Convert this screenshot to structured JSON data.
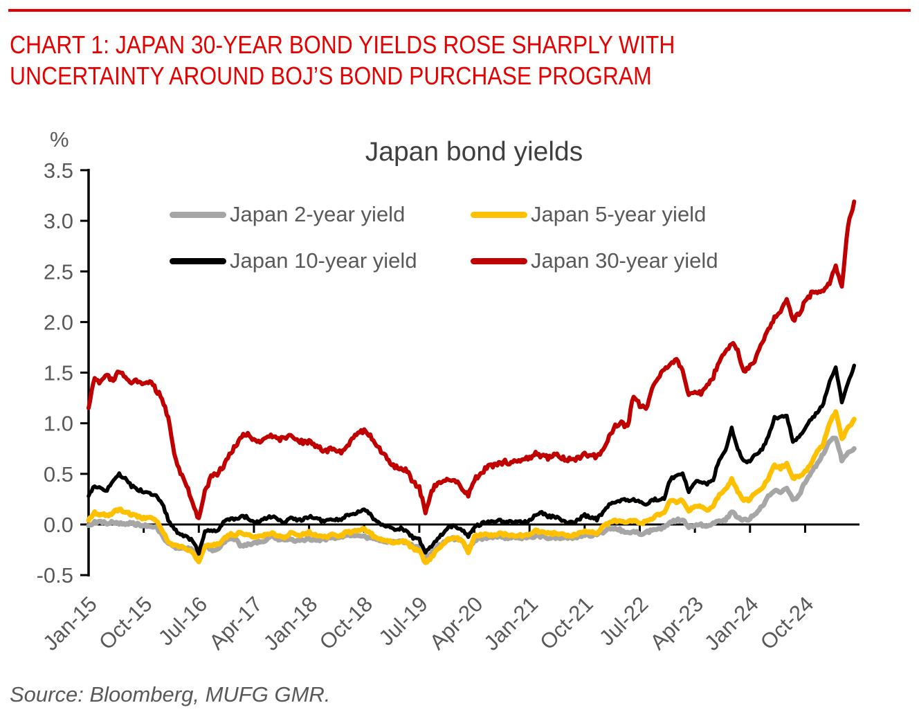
{
  "page": {
    "rule_color": "#e60000",
    "headline_color": "#e60000",
    "text_color": "#595959",
    "title_color": "#404040"
  },
  "header": {
    "line1": "CHART 1: JAPAN 30-YEAR BOND YIELDS ROSE SHARPLY WITH",
    "line2": "UNCERTAINTY AROUND BOJ’S BOND PURCHASE PROGRAM"
  },
  "source": {
    "text": "Source: Bloomberg, MUFG GMR."
  },
  "chart_data": {
    "type": "line",
    "title": "Japan bond yields",
    "unit_label": "%",
    "xlabel": "",
    "ylabel": "%",
    "ylim": [
      -0.5,
      3.5
    ],
    "grid": false,
    "legend_position": "top",
    "y_ticks": [
      3.5,
      3.0,
      2.5,
      2.0,
      1.5,
      1.0,
      0.5,
      0.0,
      -0.5
    ],
    "x_tick_labels": [
      "Jan-15",
      "Oct-15",
      "Jul-16",
      "Apr-17",
      "Jan-18",
      "Oct-18",
      "Jul-19",
      "Apr-20",
      "Jan-21",
      "Oct-21",
      "Jul-22",
      "Apr-23",
      "Jan-24",
      "Oct-24"
    ],
    "x_tick_month_index": [
      0,
      9,
      18,
      27,
      36,
      45,
      54,
      63,
      72,
      81,
      90,
      99,
      108,
      117
    ],
    "start_month": "2015-01",
    "end_month": "2025-06",
    "frequency": "monthly",
    "series": [
      {
        "name": "Japan 2-year yield",
        "color": "#a6a6a6",
        "values": [
          -0.01,
          0.02,
          0.03,
          0.01,
          0.02,
          0.01,
          0.01,
          0.01,
          0.0,
          -0.01,
          -0.02,
          -0.03,
          -0.1,
          -0.2,
          -0.22,
          -0.24,
          -0.23,
          -0.25,
          -0.33,
          -0.2,
          -0.25,
          -0.25,
          -0.18,
          -0.15,
          -0.15,
          -0.22,
          -0.2,
          -0.18,
          -0.17,
          -0.15,
          -0.12,
          -0.15,
          -0.16,
          -0.14,
          -0.17,
          -0.15,
          -0.14,
          -0.15,
          -0.15,
          -0.14,
          -0.13,
          -0.13,
          -0.12,
          -0.11,
          -0.11,
          -0.12,
          -0.14,
          -0.15,
          -0.16,
          -0.17,
          -0.18,
          -0.16,
          -0.18,
          -0.21,
          -0.22,
          -0.33,
          -0.28,
          -0.22,
          -0.18,
          -0.14,
          -0.14,
          -0.17,
          -0.25,
          -0.15,
          -0.14,
          -0.13,
          -0.12,
          -0.12,
          -0.13,
          -0.13,
          -0.13,
          -0.13,
          -0.13,
          -0.12,
          -0.12,
          -0.13,
          -0.13,
          -0.13,
          -0.13,
          -0.13,
          -0.12,
          -0.1,
          -0.11,
          -0.1,
          -0.08,
          -0.05,
          -0.03,
          -0.06,
          -0.07,
          -0.07,
          -0.09,
          -0.08,
          -0.06,
          -0.04,
          -0.03,
          0.02,
          0.04,
          0.05,
          -0.04,
          0.0,
          0.0,
          -0.02,
          0.02,
          0.04,
          0.05,
          0.12,
          0.08,
          0.04,
          0.06,
          0.12,
          0.18,
          0.28,
          0.34,
          0.32,
          0.36,
          0.24,
          0.28,
          0.42,
          0.52,
          0.6,
          0.7,
          0.82,
          0.86,
          0.64,
          0.7,
          0.75
        ]
      },
      {
        "name": "Japan 5-year yield",
        "color": "#ffc000",
        "values": [
          0.04,
          0.12,
          0.1,
          0.09,
          0.12,
          0.15,
          0.12,
          0.1,
          0.08,
          0.06,
          0.06,
          0.04,
          -0.05,
          -0.18,
          -0.2,
          -0.22,
          -0.24,
          -0.27,
          -0.38,
          -0.22,
          -0.2,
          -0.2,
          -0.14,
          -0.1,
          -0.1,
          -0.08,
          -0.1,
          -0.12,
          -0.12,
          -0.1,
          -0.08,
          -0.12,
          -0.12,
          -0.08,
          -0.1,
          -0.1,
          -0.08,
          -0.1,
          -0.12,
          -0.12,
          -0.1,
          -0.12,
          -0.08,
          -0.08,
          -0.06,
          -0.05,
          -0.08,
          -0.14,
          -0.15,
          -0.16,
          -0.18,
          -0.16,
          -0.18,
          -0.24,
          -0.26,
          -0.38,
          -0.32,
          -0.24,
          -0.18,
          -0.14,
          -0.13,
          -0.16,
          -0.28,
          -0.12,
          -0.1,
          -0.1,
          -0.1,
          -0.09,
          -0.1,
          -0.1,
          -0.11,
          -0.11,
          -0.1,
          -0.06,
          -0.08,
          -0.09,
          -0.09,
          -0.1,
          -0.11,
          -0.11,
          -0.09,
          -0.06,
          -0.07,
          -0.08,
          -0.02,
          0.02,
          0.04,
          0.02,
          0.02,
          0.04,
          0.02,
          0.02,
          0.06,
          0.1,
          0.12,
          0.24,
          0.22,
          0.24,
          0.14,
          0.18,
          0.18,
          0.14,
          0.18,
          0.3,
          0.34,
          0.45,
          0.32,
          0.24,
          0.24,
          0.32,
          0.36,
          0.46,
          0.58,
          0.56,
          0.6,
          0.45,
          0.48,
          0.52,
          0.6,
          0.72,
          0.8,
          1.0,
          1.12,
          0.85,
          0.95,
          1.04
        ]
      },
      {
        "name": "Japan 10-year yield",
        "color": "#000000",
        "values": [
          0.28,
          0.38,
          0.36,
          0.34,
          0.42,
          0.5,
          0.45,
          0.38,
          0.35,
          0.32,
          0.3,
          0.28,
          0.22,
          0.05,
          -0.05,
          -0.1,
          -0.12,
          -0.16,
          -0.28,
          -0.07,
          -0.06,
          -0.06,
          0.02,
          0.05,
          0.06,
          0.08,
          0.07,
          0.02,
          0.04,
          0.06,
          0.08,
          0.04,
          0.02,
          0.07,
          0.04,
          0.05,
          0.08,
          0.06,
          0.04,
          0.04,
          0.05,
          0.04,
          0.08,
          0.1,
          0.12,
          0.15,
          0.1,
          0.02,
          0.0,
          -0.02,
          -0.06,
          -0.04,
          -0.06,
          -0.14,
          -0.15,
          -0.28,
          -0.22,
          -0.14,
          -0.08,
          -0.02,
          -0.02,
          -0.06,
          -0.12,
          -0.02,
          0.0,
          0.03,
          0.02,
          0.04,
          0.02,
          0.03,
          0.02,
          0.02,
          0.04,
          0.1,
          0.12,
          0.08,
          0.08,
          0.05,
          0.02,
          0.02,
          0.05,
          0.09,
          0.07,
          0.05,
          0.12,
          0.2,
          0.22,
          0.24,
          0.24,
          0.24,
          0.22,
          0.2,
          0.24,
          0.25,
          0.25,
          0.45,
          0.48,
          0.5,
          0.32,
          0.42,
          0.43,
          0.4,
          0.45,
          0.65,
          0.72,
          0.95,
          0.75,
          0.62,
          0.62,
          0.7,
          0.74,
          0.88,
          1.05,
          1.06,
          1.08,
          0.82,
          0.86,
          0.95,
          1.05,
          1.1,
          1.2,
          1.4,
          1.56,
          1.2,
          1.4,
          1.57
        ]
      },
      {
        "name": "Japan 30-year yield",
        "color": "#c00000",
        "values": [
          1.15,
          1.45,
          1.4,
          1.48,
          1.42,
          1.52,
          1.46,
          1.4,
          1.42,
          1.38,
          1.42,
          1.33,
          1.25,
          1.05,
          0.7,
          0.5,
          0.4,
          0.22,
          0.05,
          0.32,
          0.48,
          0.5,
          0.58,
          0.68,
          0.78,
          0.88,
          0.9,
          0.84,
          0.82,
          0.85,
          0.88,
          0.84,
          0.86,
          0.88,
          0.84,
          0.81,
          0.82,
          0.78,
          0.74,
          0.73,
          0.75,
          0.71,
          0.76,
          0.84,
          0.89,
          0.93,
          0.87,
          0.79,
          0.7,
          0.63,
          0.57,
          0.56,
          0.53,
          0.42,
          0.36,
          0.12,
          0.32,
          0.42,
          0.44,
          0.45,
          0.42,
          0.36,
          0.28,
          0.45,
          0.5,
          0.56,
          0.58,
          0.6,
          0.62,
          0.61,
          0.63,
          0.64,
          0.66,
          0.7,
          0.68,
          0.66,
          0.69,
          0.67,
          0.64,
          0.64,
          0.66,
          0.7,
          0.68,
          0.67,
          0.74,
          0.87,
          0.97,
          1.0,
          0.96,
          1.28,
          1.18,
          1.14,
          1.32,
          1.46,
          1.52,
          1.58,
          1.64,
          1.52,
          1.26,
          1.32,
          1.3,
          1.36,
          1.46,
          1.62,
          1.7,
          1.8,
          1.72,
          1.5,
          1.58,
          1.64,
          1.8,
          1.92,
          2.05,
          2.12,
          2.22,
          2.02,
          2.08,
          2.2,
          2.28,
          2.28,
          2.3,
          2.38,
          2.55,
          2.35,
          2.95,
          3.19
        ]
      }
    ]
  }
}
